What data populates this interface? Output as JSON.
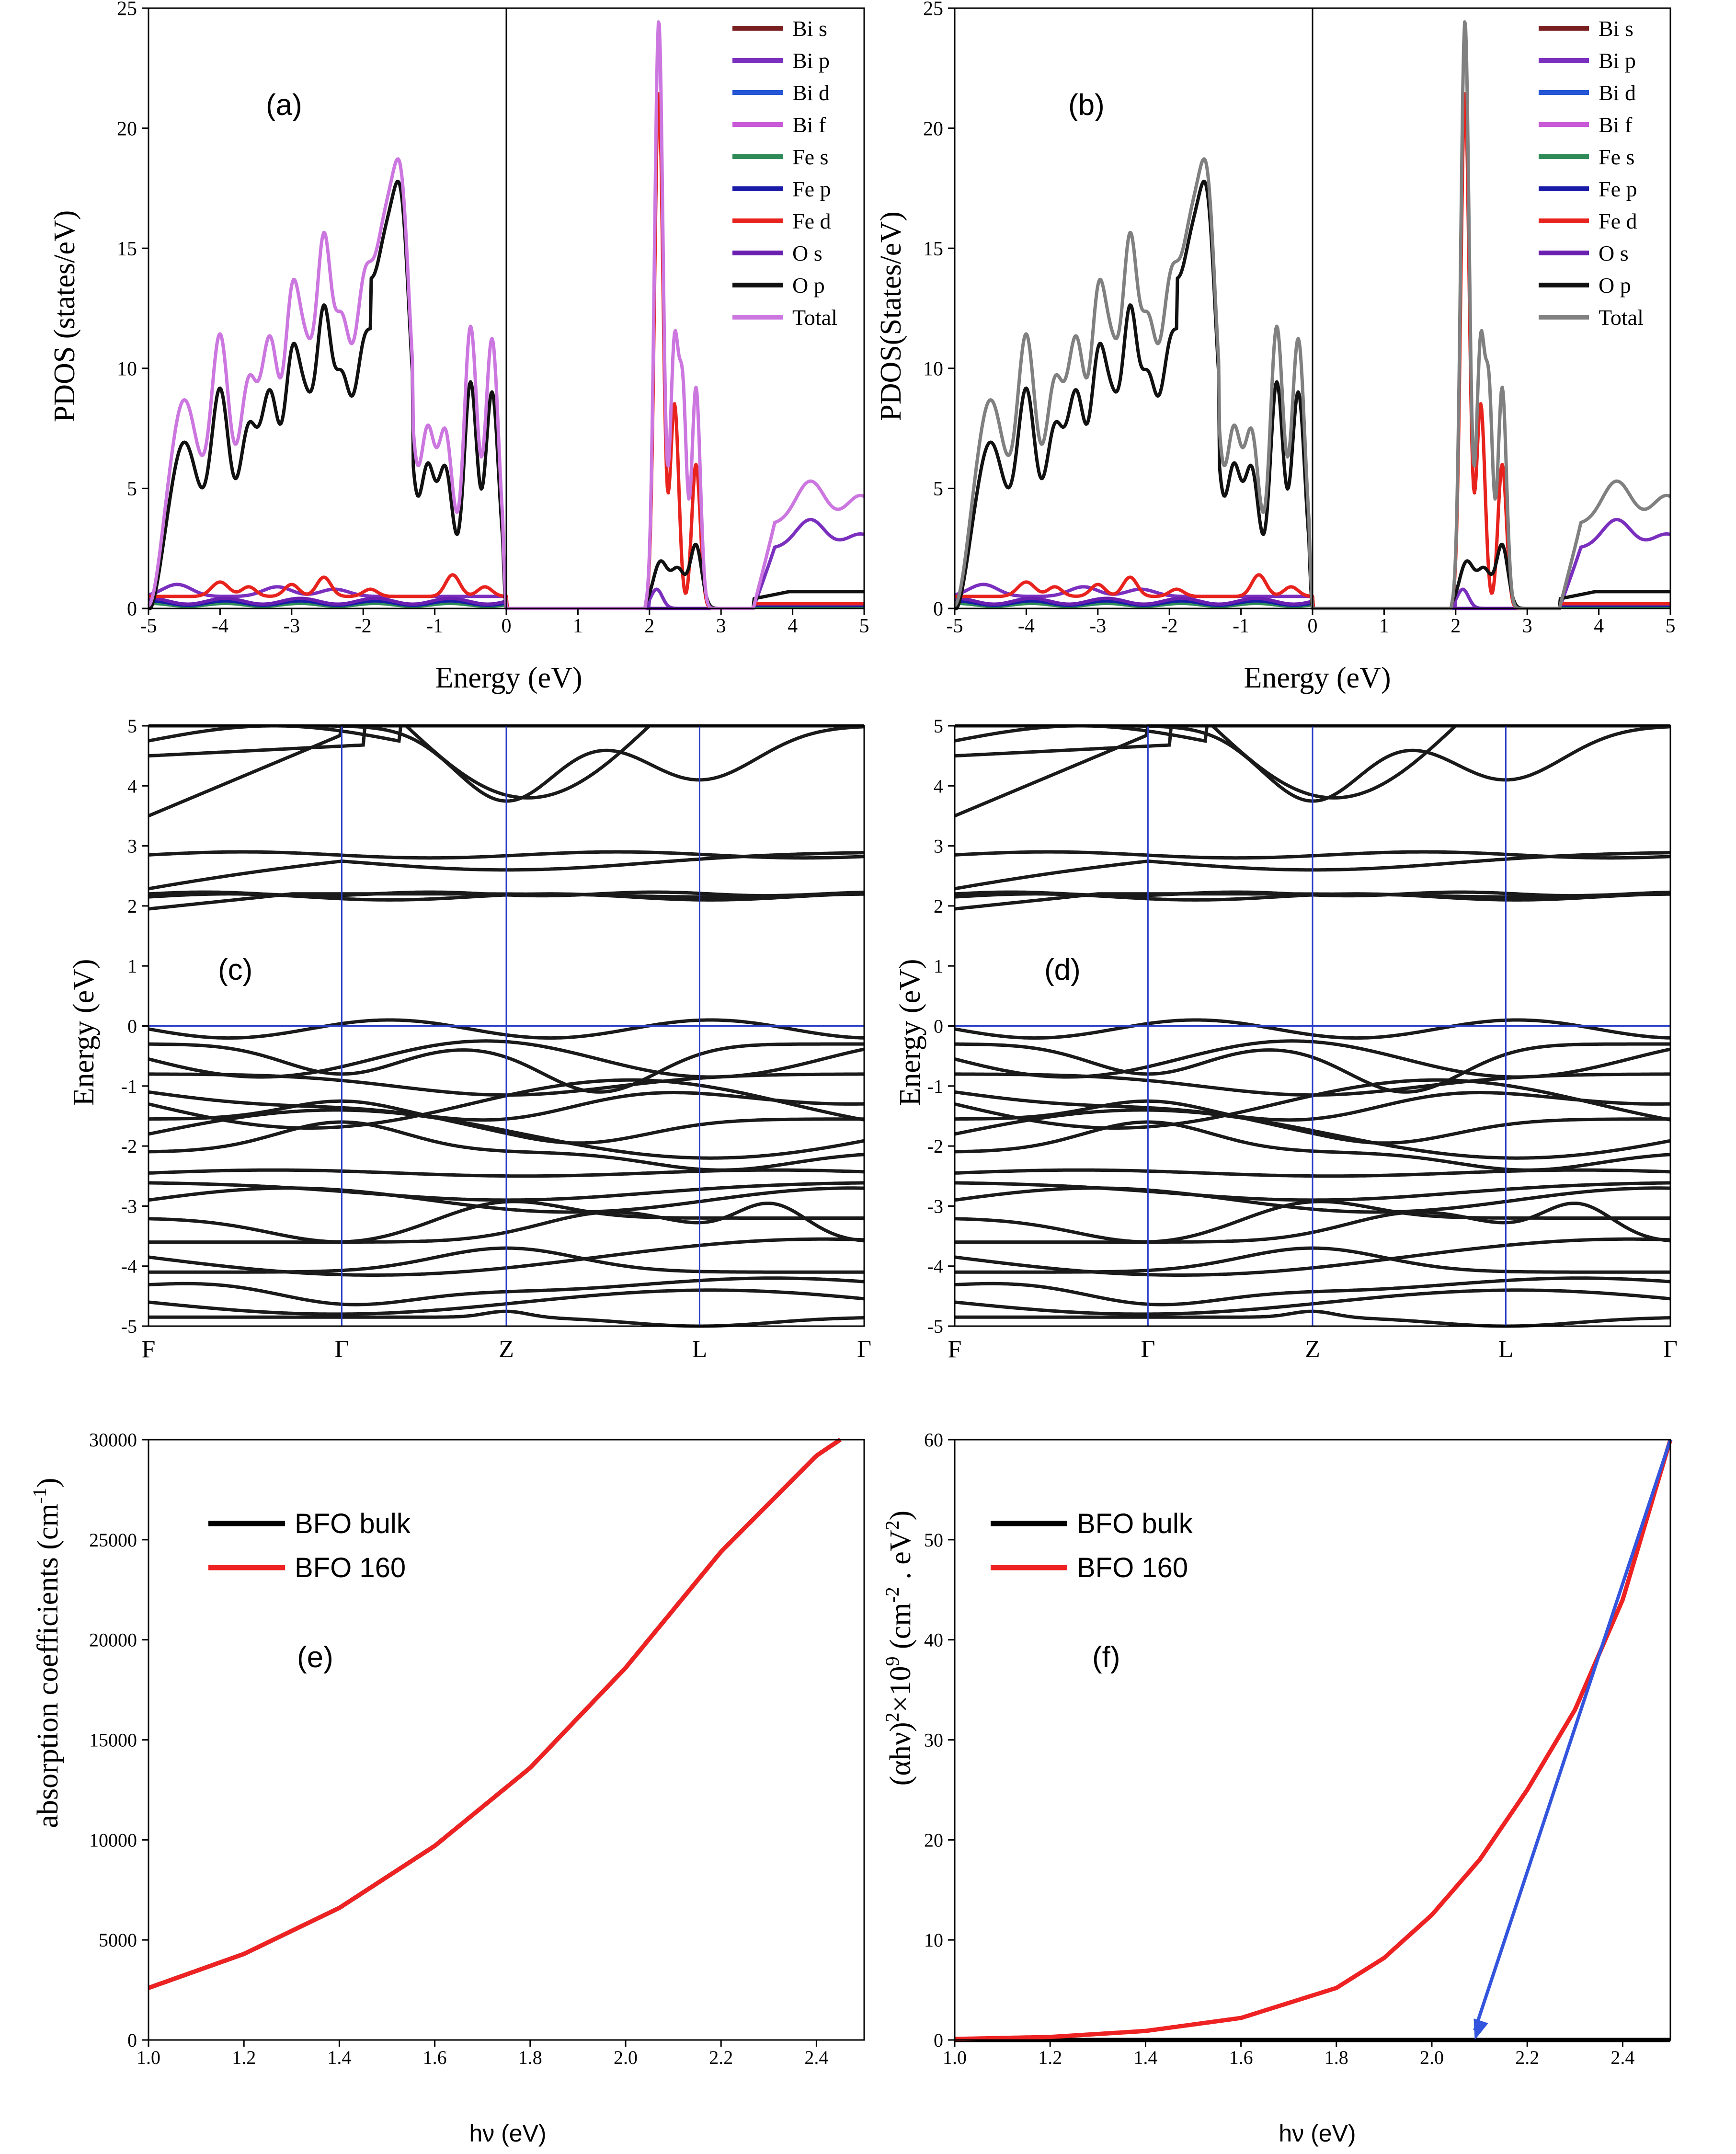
{
  "chart_data": [
    {
      "id": "a",
      "type": "line",
      "panel_label": "(a)",
      "xlabel": "Energy (eV)",
      "ylabel": "PDOS (states/eV)",
      "xlim": [
        -5,
        5
      ],
      "ylim": [
        0,
        25
      ],
      "x_ticks": [
        -5,
        -4,
        -3,
        -2,
        -1,
        0,
        1,
        2,
        3,
        4,
        5
      ],
      "y_ticks": [
        0,
        5,
        10,
        15,
        20,
        25
      ],
      "legend": [
        "Bi s",
        "Bi p",
        "Bi d",
        "Bi f",
        "Fe s",
        "Fe p",
        "Fe d",
        "O s",
        "O p",
        "Total"
      ],
      "colors": [
        "#7a1f1f",
        "#7b2fbe",
        "#2456d6",
        "#c85ad8",
        "#2e8b57",
        "#1a1aa8",
        "#e8231e",
        "#6a1fb0",
        "#111111",
        "#cc77e0"
      ],
      "fermi_line_x": 0
    },
    {
      "id": "b",
      "type": "line",
      "panel_label": "(b)",
      "xlabel": "Energy (eV)",
      "ylabel": "PDOS(States/eV)",
      "xlim": [
        -5,
        5
      ],
      "ylim": [
        0,
        25
      ],
      "x_ticks": [
        -5,
        -4,
        -3,
        -2,
        -1,
        0,
        1,
        2,
        3,
        4,
        5
      ],
      "y_ticks": [
        0,
        5,
        10,
        15,
        20,
        25
      ],
      "legend": [
        "Bi s",
        "Bi p",
        "Bi d",
        "Bi f",
        "Fe s",
        "Fe p",
        "Fe d",
        "O s",
        "O p",
        "Total"
      ],
      "colors": [
        "#7a1f1f",
        "#7b2fbe",
        "#2456d6",
        "#c85ad8",
        "#2e8b57",
        "#1a1aa8",
        "#e8231e",
        "#6a1fb0",
        "#111111",
        "#808080"
      ],
      "fermi_line_x": 0
    },
    {
      "id": "c",
      "type": "line",
      "panel_label": "(c)",
      "ylabel": "Energy (eV)",
      "ylim": [
        -5,
        5
      ],
      "y_ticks": [
        -5,
        -4,
        -3,
        -2,
        -1,
        0,
        1,
        2,
        3,
        4,
        5
      ],
      "k_labels": [
        "F",
        "Γ",
        "Z",
        "L",
        "Γ"
      ]
    },
    {
      "id": "d",
      "type": "line",
      "panel_label": "(d)",
      "ylabel": "Energy (eV)",
      "ylim": [
        -5,
        5
      ],
      "y_ticks": [
        -5,
        -4,
        -3,
        -2,
        -1,
        0,
        1,
        2,
        3,
        4,
        5
      ],
      "k_labels": [
        "F",
        "Γ",
        "Z",
        "L",
        "Γ"
      ]
    },
    {
      "id": "e",
      "type": "line",
      "panel_label": "(e)",
      "xlabel": "hν (eV)",
      "ylabel": "absorption coefficients (cm",
      "ylabel_sup": "-1",
      "ylabel_end": ")",
      "xlim": [
        1.0,
        2.5
      ],
      "ylim": [
        0,
        30000
      ],
      "x_ticks": [
        "1.0",
        "1.2",
        "1.4",
        "1.6",
        "1.8",
        "2.0",
        "2.2",
        "2.4"
      ],
      "y_ticks": [
        "0",
        "5000",
        "10000",
        "15000",
        "20000",
        "25000",
        "30000"
      ],
      "series": [
        {
          "name": "BFO bulk",
          "color": "#000000",
          "x": [
            1.0,
            1.2,
            1.4,
            1.6,
            1.8,
            2.0,
            2.2,
            2.4,
            2.45
          ],
          "y": [
            2600,
            4300,
            6600,
            9700,
            13600,
            18600,
            24400,
            29200,
            30000
          ]
        },
        {
          "name": "BFO 160",
          "color": "#ee2222",
          "x": [
            1.0,
            1.2,
            1.4,
            1.6,
            1.8,
            2.0,
            2.2,
            2.4,
            2.45
          ],
          "y": [
            2600,
            4300,
            6600,
            9700,
            13600,
            18600,
            24400,
            29200,
            30000
          ]
        }
      ]
    },
    {
      "id": "f",
      "type": "line",
      "panel_label": "(f)",
      "xlabel": "hν (eV)",
      "ylabel": "(αhν)",
      "ylabel_sup1": "2",
      "ylabel_mid": "×10",
      "ylabel_sup2": "9",
      "ylabel_mid2": " (cm",
      "ylabel_sup3": "-2",
      "ylabel_mid3": " . eV",
      "ylabel_sup4": "2",
      "ylabel_end": ")",
      "xlim": [
        1.0,
        2.5
      ],
      "ylim": [
        0,
        60
      ],
      "x_ticks": [
        "1.0",
        "1.2",
        "1.4",
        "1.6",
        "1.8",
        "2.0",
        "2.2",
        "2.4"
      ],
      "y_ticks": [
        "0",
        "10",
        "20",
        "30",
        "40",
        "50",
        "60"
      ],
      "series": [
        {
          "name": "BFO bulk",
          "color": "#000000",
          "x": [
            1.0,
            2.5
          ],
          "y": [
            0,
            0
          ]
        },
        {
          "name": "BFO 160",
          "color": "#ee2222",
          "x": [
            1.0,
            1.2,
            1.4,
            1.6,
            1.8,
            1.9,
            2.0,
            2.1,
            2.2,
            2.3,
            2.4,
            2.5
          ],
          "y": [
            0.1,
            0.3,
            0.9,
            2.2,
            5.2,
            8.2,
            12.5,
            18.0,
            25.0,
            33.0,
            44.0,
            60.0
          ]
        }
      ],
      "tangent": {
        "color": "#3355dd",
        "x_start": 2.5,
        "y_start": 60,
        "x_end": 2.09,
        "y_end": 0
      }
    }
  ]
}
